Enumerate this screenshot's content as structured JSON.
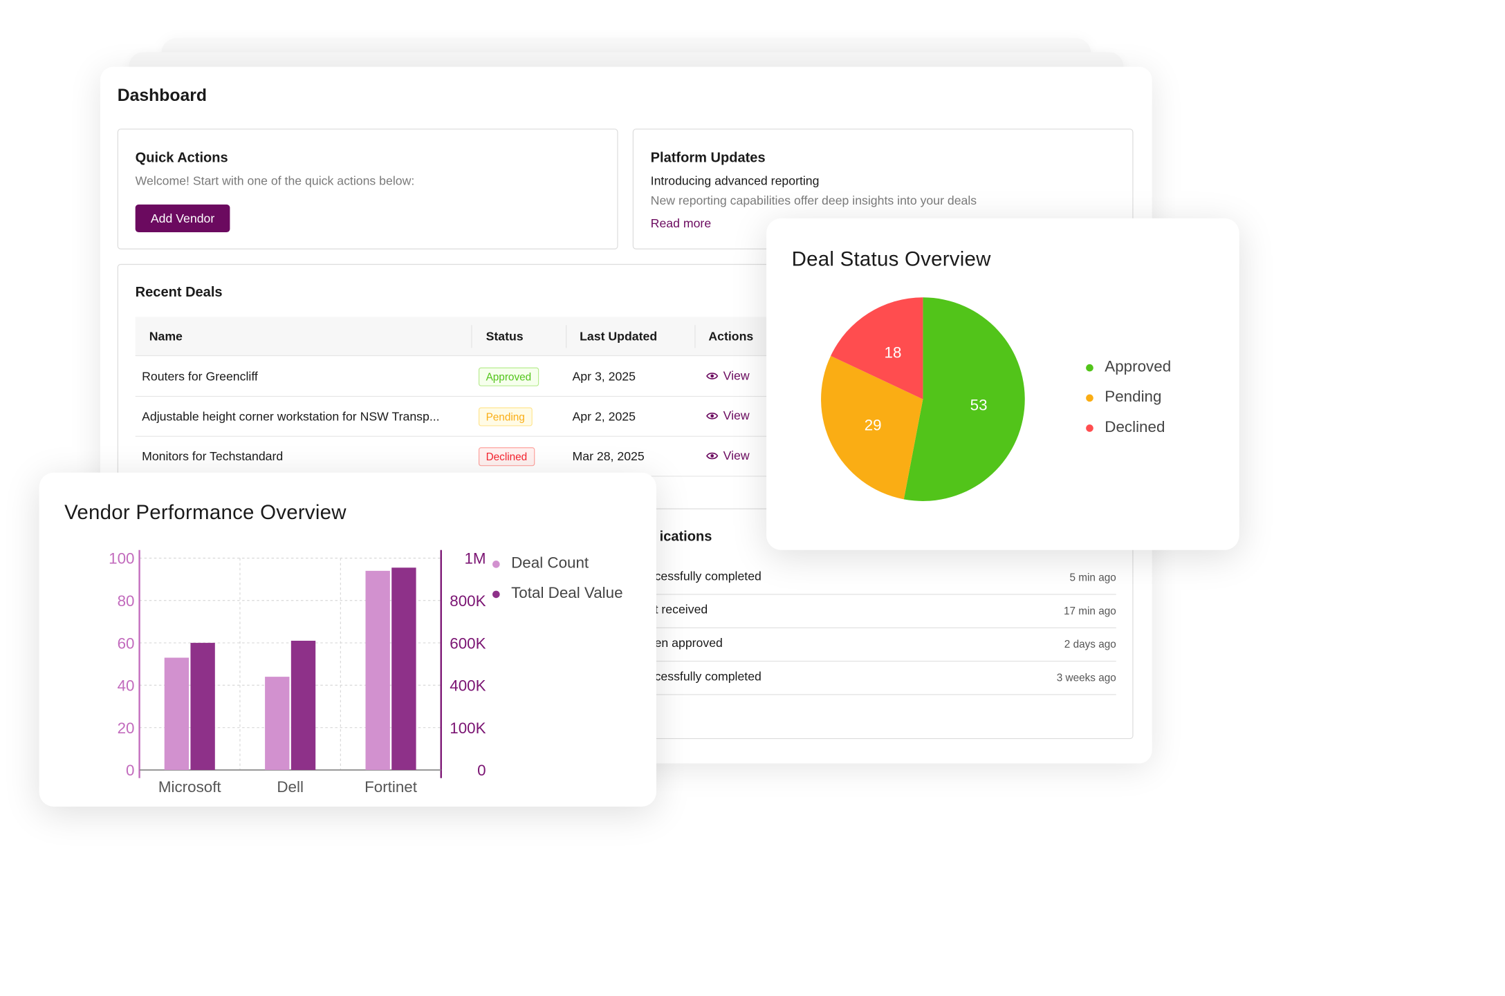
{
  "dashboard": {
    "title": "Dashboard",
    "quick_actions": {
      "title": "Quick Actions",
      "subtitle": "Welcome! Start with one of the quick actions below:",
      "button": "Add Vendor"
    },
    "platform_updates": {
      "title": "Platform Updates",
      "headline": "Introducing advanced reporting",
      "description": "New reporting capabilities offer deep insights into your deals",
      "link": "Read more"
    },
    "recent_deals": {
      "title": "Recent Deals",
      "columns": [
        "Name",
        "Status",
        "Last Updated",
        "Actions"
      ],
      "rows": [
        {
          "name": "Routers for Greencliff",
          "status": "Approved",
          "updated": "Apr 3, 2025",
          "action": "View"
        },
        {
          "name": "Adjustable height corner workstation for NSW Transp...",
          "status": "Pending",
          "updated": "Apr 2, 2025",
          "action": "View"
        },
        {
          "name": "Monitors for Techstandard",
          "status": "Declined",
          "updated": "Mar 28, 2025",
          "action": "View"
        }
      ]
    },
    "notifications": {
      "title_fragment": "ications",
      "rows": [
        {
          "text": "cessfully completed",
          "time": "5 min ago"
        },
        {
          "text": "t received",
          "time": "17 min ago"
        },
        {
          "text": "en approved",
          "time": "2 days ago"
        },
        {
          "text": "cessfully completed",
          "time": "3 weeks ago"
        }
      ]
    }
  },
  "colors": {
    "brand": "#6b0a5f",
    "approved": "#52c41a",
    "pending": "#faad14",
    "declined": "#ff4d4f",
    "deal_count": "#d291cf",
    "total_deal_value": "#8e3189"
  },
  "icons": {
    "view": "eye-icon"
  },
  "chart_data": [
    {
      "type": "pie",
      "title": "Deal Status Overview",
      "categories": [
        "Approved",
        "Pending",
        "Declined"
      ],
      "values": [
        53,
        29,
        18
      ],
      "legend": "right"
    },
    {
      "type": "bar",
      "title": "Vendor Performance Overview",
      "categories": [
        "Microsoft",
        "Dell",
        "Fortinet"
      ],
      "series": [
        {
          "name": "Deal Count",
          "axis": "left",
          "values": [
            53,
            44,
            94
          ]
        },
        {
          "name": "Total Deal Value",
          "axis": "right",
          "values": [
            600000,
            610000,
            955000
          ]
        }
      ],
      "y_left_ticks": [
        "0",
        "20",
        "40",
        "60",
        "80",
        "100"
      ],
      "y_right_ticks": [
        "0",
        "100K",
        "400K",
        "600K",
        "800K",
        "1M"
      ],
      "ylim_left": [
        0,
        100
      ],
      "ylim_right": [
        0,
        1000000
      ],
      "grid": true,
      "legend": "right"
    }
  ]
}
